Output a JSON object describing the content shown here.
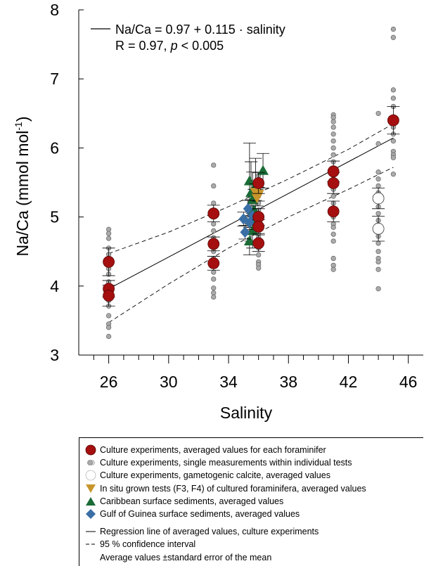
{
  "chart_data": {
    "type": "scatter",
    "xlabel": "Salinity",
    "ylabel": "Na/Ca (mmol mol",
    "ylabel_sup": "-1",
    "ylabel_close": ")",
    "xlim": [
      24,
      47
    ],
    "ylim": [
      3,
      8
    ],
    "xticks": [
      26,
      30,
      34,
      38,
      42,
      46
    ],
    "xminor_step": 1,
    "yticks": [
      3,
      4,
      5,
      6,
      7,
      8
    ],
    "grid": false,
    "annotation": {
      "line1": "Na/Ca = 0.97 + 0.115 · salinity",
      "line2_prefix": "R = 0.97, ",
      "line2_p": "p",
      "line2_suffix": " < 0.005"
    },
    "regression": {
      "intercept": 0.97,
      "slope": 0.115,
      "x_range": [
        26,
        45
      ]
    },
    "confidence_interval": {
      "upper": [
        [
          26,
          4.47
        ],
        [
          30,
          4.78
        ],
        [
          34,
          5.15
        ],
        [
          38,
          5.55
        ],
        [
          42,
          5.98
        ],
        [
          45,
          6.35
        ]
      ],
      "lower": [
        [
          26,
          3.47
        ],
        [
          30,
          4.03
        ],
        [
          34,
          4.55
        ],
        [
          38,
          5.0
        ],
        [
          42,
          5.4
        ],
        [
          45,
          5.72
        ]
      ]
    },
    "series": [
      {
        "name": "Culture experiments, averaged values for each foraminifer",
        "marker": "circle",
        "color": "#a50f0f",
        "points": [
          {
            "x": 26,
            "y": 4.35,
            "err": 0.2
          },
          {
            "x": 26,
            "y": 3.96,
            "err": 0.12
          },
          {
            "x": 26,
            "y": 3.86,
            "err": 0.15
          },
          {
            "x": 33,
            "y": 5.05,
            "err": 0.12
          },
          {
            "x": 33,
            "y": 4.61,
            "err": 0.1
          },
          {
            "x": 33,
            "y": 4.33,
            "err": 0.1
          },
          {
            "x": 36,
            "y": 5.49,
            "err": 0.15
          },
          {
            "x": 36,
            "y": 5.0,
            "err": 0.12
          },
          {
            "x": 36,
            "y": 4.86,
            "err": 0.1
          },
          {
            "x": 36,
            "y": 4.62,
            "err": 0.12
          },
          {
            "x": 41,
            "y": 5.66,
            "err": 0.15
          },
          {
            "x": 41,
            "y": 5.49,
            "err": 0.15
          },
          {
            "x": 41,
            "y": 5.08,
            "err": 0.15
          },
          {
            "x": 45,
            "y": 6.4,
            "err": 0.2
          }
        ]
      },
      {
        "name": "Culture experiments, single measurements within individual tests",
        "marker": "small-circle",
        "color": "#aaaaaa",
        "points": [
          {
            "x": 26,
            "y": 4.82
          },
          {
            "x": 26,
            "y": 4.76
          },
          {
            "x": 26,
            "y": 4.69
          },
          {
            "x": 26,
            "y": 4.55
          },
          {
            "x": 26,
            "y": 4.46
          },
          {
            "x": 26,
            "y": 4.38
          },
          {
            "x": 26,
            "y": 4.25
          },
          {
            "x": 26,
            "y": 4.17
          },
          {
            "x": 26,
            "y": 4.06
          },
          {
            "x": 26,
            "y": 3.95
          },
          {
            "x": 26,
            "y": 3.88
          },
          {
            "x": 26,
            "y": 3.79
          },
          {
            "x": 26,
            "y": 3.71
          },
          {
            "x": 26,
            "y": 3.57
          },
          {
            "x": 26,
            "y": 3.45
          },
          {
            "x": 26,
            "y": 3.4
          },
          {
            "x": 26,
            "y": 3.27
          },
          {
            "x": 33,
            "y": 5.75
          },
          {
            "x": 33,
            "y": 5.45
          },
          {
            "x": 33,
            "y": 5.2
          },
          {
            "x": 33,
            "y": 5.1
          },
          {
            "x": 33,
            "y": 5.0
          },
          {
            "x": 33,
            "y": 4.9
          },
          {
            "x": 33,
            "y": 4.8
          },
          {
            "x": 33,
            "y": 4.7
          },
          {
            "x": 33,
            "y": 4.6
          },
          {
            "x": 33,
            "y": 4.5
          },
          {
            "x": 33,
            "y": 4.4
          },
          {
            "x": 33,
            "y": 4.3
          },
          {
            "x": 33,
            "y": 4.2
          },
          {
            "x": 33,
            "y": 4.1
          },
          {
            "x": 33,
            "y": 3.97
          },
          {
            "x": 33,
            "y": 3.9
          },
          {
            "x": 33,
            "y": 3.84
          },
          {
            "x": 36,
            "y": 5.6
          },
          {
            "x": 36,
            "y": 5.4
          },
          {
            "x": 36,
            "y": 5.3
          },
          {
            "x": 36,
            "y": 5.2
          },
          {
            "x": 36,
            "y": 5.1
          },
          {
            "x": 36,
            "y": 5.05
          },
          {
            "x": 36,
            "y": 4.95
          },
          {
            "x": 36,
            "y": 4.9
          },
          {
            "x": 36,
            "y": 4.8
          },
          {
            "x": 36,
            "y": 4.75
          },
          {
            "x": 36,
            "y": 4.7
          },
          {
            "x": 36,
            "y": 4.55
          },
          {
            "x": 36,
            "y": 4.45
          },
          {
            "x": 36,
            "y": 4.35
          },
          {
            "x": 36,
            "y": 4.31
          },
          {
            "x": 36,
            "y": 4.26
          },
          {
            "x": 41,
            "y": 6.48
          },
          {
            "x": 41,
            "y": 6.44
          },
          {
            "x": 41,
            "y": 6.38
          },
          {
            "x": 41,
            "y": 6.3
          },
          {
            "x": 41,
            "y": 6.2
          },
          {
            "x": 41,
            "y": 6.1
          },
          {
            "x": 41,
            "y": 6.0
          },
          {
            "x": 41,
            "y": 5.9
          },
          {
            "x": 41,
            "y": 5.8
          },
          {
            "x": 41,
            "y": 5.7
          },
          {
            "x": 41,
            "y": 5.6
          },
          {
            "x": 41,
            "y": 5.5
          },
          {
            "x": 41,
            "y": 5.4
          },
          {
            "x": 41,
            "y": 5.3
          },
          {
            "x": 41,
            "y": 5.2
          },
          {
            "x": 41,
            "y": 5.1
          },
          {
            "x": 41,
            "y": 5.0
          },
          {
            "x": 41,
            "y": 4.9
          },
          {
            "x": 41,
            "y": 4.85
          },
          {
            "x": 41,
            "y": 4.75
          },
          {
            "x": 41,
            "y": 4.65
          },
          {
            "x": 41,
            "y": 4.4
          },
          {
            "x": 41,
            "y": 4.3
          },
          {
            "x": 41,
            "y": 4.24
          },
          {
            "x": 44,
            "y": 6.5
          },
          {
            "x": 44,
            "y": 6.06
          },
          {
            "x": 44,
            "y": 5.65
          },
          {
            "x": 44,
            "y": 5.55
          },
          {
            "x": 44,
            "y": 5.45
          },
          {
            "x": 44,
            "y": 5.35
          },
          {
            "x": 44,
            "y": 5.15
          },
          {
            "x": 44,
            "y": 5.05
          },
          {
            "x": 44,
            "y": 4.95
          },
          {
            "x": 44,
            "y": 4.8
          },
          {
            "x": 44,
            "y": 4.72
          },
          {
            "x": 44,
            "y": 4.62
          },
          {
            "x": 44,
            "y": 4.5
          },
          {
            "x": 44,
            "y": 4.4
          },
          {
            "x": 44,
            "y": 4.35
          },
          {
            "x": 44,
            "y": 4.24
          },
          {
            "x": 44,
            "y": 3.96
          },
          {
            "x": 45,
            "y": 7.72
          },
          {
            "x": 45,
            "y": 7.6
          },
          {
            "x": 45,
            "y": 6.84
          },
          {
            "x": 45,
            "y": 6.72
          },
          {
            "x": 45,
            "y": 6.6
          },
          {
            "x": 45,
            "y": 6.45
          },
          {
            "x": 45,
            "y": 6.3
          },
          {
            "x": 45,
            "y": 6.2
          },
          {
            "x": 45,
            "y": 6.1
          },
          {
            "x": 45,
            "y": 5.95
          },
          {
            "x": 45,
            "y": 5.9
          },
          {
            "x": 45,
            "y": 5.86
          },
          {
            "x": 45,
            "y": 5.62
          }
        ]
      },
      {
        "name": "Culture experiments, gametogenic calcite, averaged values",
        "marker": "open-circle",
        "color": "#ffffff",
        "points": [
          {
            "x": 44,
            "y": 5.27,
            "err": 0.15
          },
          {
            "x": 44,
            "y": 4.83,
            "err": 0.18
          }
        ]
      },
      {
        "name": "In situ grown tests (F3, F4) of cultured foraminifera, averaged values",
        "marker": "triangle-down",
        "color": "#c8952c",
        "points": [
          {
            "x": 35.8,
            "y": 5.36,
            "err": 0.12
          },
          {
            "x": 35.9,
            "y": 5.28,
            "err": 0.12
          },
          {
            "x": 36.0,
            "y": 5.33,
            "err": 0.1
          }
        ]
      },
      {
        "name": "Caribbean surface sediments, averaged values",
        "marker": "triangle-up",
        "color": "#1a6b36",
        "points": [
          {
            "x": 35.4,
            "y": 5.52,
            "err": 0.55
          },
          {
            "x": 35.5,
            "y": 5.35,
            "err": 0.45
          },
          {
            "x": 35.6,
            "y": 5.25,
            "err": 0.4
          },
          {
            "x": 35.7,
            "y": 5.1,
            "err": 0.3
          },
          {
            "x": 35.5,
            "y": 4.95,
            "err": 0.3
          },
          {
            "x": 35.6,
            "y": 4.8,
            "err": 0.25
          },
          {
            "x": 35.4,
            "y": 4.65,
            "err": 0.2
          },
          {
            "x": 35.8,
            "y": 5.45,
            "err": 0.4
          },
          {
            "x": 36.3,
            "y": 5.67,
            "err": 0.25
          }
        ]
      },
      {
        "name": "Gulf of Guinea surface sediments, averaged values",
        "marker": "diamond",
        "color": "#3a6fa6",
        "points": [
          {
            "x": 35.0,
            "y": 4.97,
            "err": 0.1
          },
          {
            "x": 35.3,
            "y": 5.12,
            "err": 0.12
          },
          {
            "x": 35.1,
            "y": 4.78,
            "err": 0.1
          },
          {
            "x": 35.4,
            "y": 4.92,
            "err": 0.1
          },
          {
            "x": 35.6,
            "y": 5.02,
            "err": 0.1
          }
        ]
      }
    ]
  },
  "legend": {
    "regression_label": "Regression line of averaged values, culture experiments",
    "ci_label": "95 % confidence interval",
    "sem_label": "Average values ±standard error of the mean"
  }
}
